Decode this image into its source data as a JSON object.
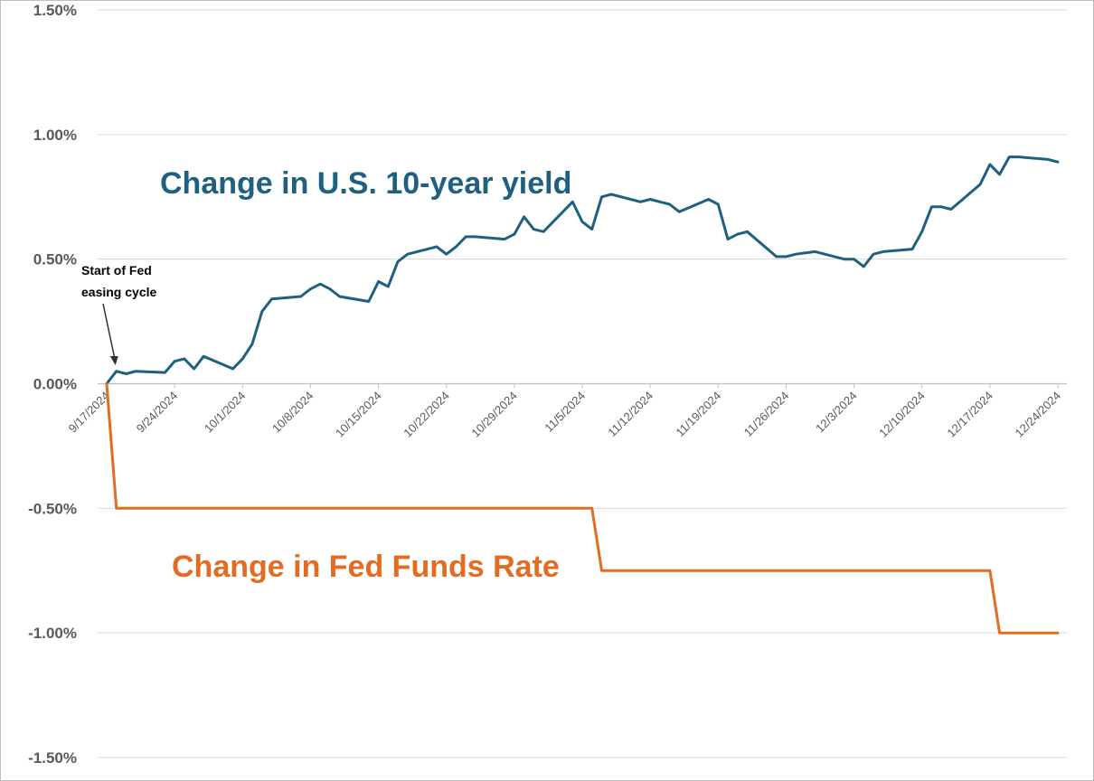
{
  "chart_data": {
    "type": "line",
    "x_type": "date",
    "y_ticks": [
      "1.50%",
      "1.00%",
      "0.50%",
      "0.00%",
      "-0.50%",
      "-1.00%",
      "-1.50%"
    ],
    "y_tick_values": [
      1.5,
      1.0,
      0.5,
      0.0,
      -0.5,
      -1.0,
      -1.5
    ],
    "ylim": [
      -1.5,
      1.5
    ],
    "grid": true,
    "x_tick_labels": [
      "9/17/2024",
      "9/24/2024",
      "10/1/2024",
      "10/8/2024",
      "10/15/2024",
      "10/22/2024",
      "10/29/2024",
      "11/5/2024",
      "11/12/2024",
      "11/19/2024",
      "11/26/2024",
      "12/3/2024",
      "12/10/2024",
      "12/17/2024",
      "12/24/2024"
    ],
    "x_tick_dates": [
      "2024-09-17",
      "2024-09-24",
      "2024-10-01",
      "2024-10-08",
      "2024-10-15",
      "2024-10-22",
      "2024-10-29",
      "2024-11-05",
      "2024-11-12",
      "2024-11-19",
      "2024-11-26",
      "2024-12-03",
      "2024-12-10",
      "2024-12-17",
      "2024-12-24"
    ],
    "xlim": [
      "2024-09-17",
      "2024-12-24"
    ],
    "annotation": {
      "lines": [
        "Start of Fed",
        "easing cycle"
      ],
      "date": "2024-09-18"
    },
    "series": [
      {
        "name": "Change in U.S. 10-year yield",
        "label_lines": [
          "Change in U.S. 10-year yield"
        ],
        "color": "#1f6080",
        "step": false,
        "x": [
          "2024-09-17",
          "2024-09-18",
          "2024-09-19",
          "2024-09-20",
          "2024-09-23",
          "2024-09-24",
          "2024-09-25",
          "2024-09-26",
          "2024-09-27",
          "2024-09-30",
          "2024-10-01",
          "2024-10-02",
          "2024-10-03",
          "2024-10-04",
          "2024-10-07",
          "2024-10-08",
          "2024-10-09",
          "2024-10-10",
          "2024-10-11",
          "2024-10-14",
          "2024-10-15",
          "2024-10-16",
          "2024-10-17",
          "2024-10-18",
          "2024-10-21",
          "2024-10-22",
          "2024-10-23",
          "2024-10-24",
          "2024-10-25",
          "2024-10-28",
          "2024-10-29",
          "2024-10-30",
          "2024-10-31",
          "2024-11-01",
          "2024-11-04",
          "2024-11-05",
          "2024-11-06",
          "2024-11-07",
          "2024-11-08",
          "2024-11-11",
          "2024-11-12",
          "2024-11-13",
          "2024-11-14",
          "2024-11-15",
          "2024-11-18",
          "2024-11-19",
          "2024-11-20",
          "2024-11-21",
          "2024-11-22",
          "2024-11-25",
          "2024-11-26",
          "2024-11-27",
          "2024-11-29",
          "2024-12-02",
          "2024-12-03",
          "2024-12-04",
          "2024-12-05",
          "2024-12-06",
          "2024-12-09",
          "2024-12-10",
          "2024-12-11",
          "2024-12-12",
          "2024-12-13",
          "2024-12-16",
          "2024-12-17",
          "2024-12-18",
          "2024-12-19",
          "2024-12-20",
          "2024-12-23",
          "2024-12-24"
        ],
        "y": [
          0.0,
          0.05,
          0.04,
          0.05,
          0.045,
          0.09,
          0.1,
          0.06,
          0.11,
          0.06,
          0.1,
          0.16,
          0.29,
          0.34,
          0.35,
          0.38,
          0.4,
          0.38,
          0.35,
          0.33,
          0.41,
          0.39,
          0.49,
          0.52,
          0.55,
          0.52,
          0.55,
          0.59,
          0.59,
          0.58,
          0.6,
          0.67,
          0.62,
          0.61,
          0.73,
          0.65,
          0.62,
          0.75,
          0.76,
          0.73,
          0.74,
          0.73,
          0.72,
          0.69,
          0.74,
          0.72,
          0.58,
          0.6,
          0.61,
          0.51,
          0.51,
          0.52,
          0.53,
          0.5,
          0.5,
          0.47,
          0.52,
          0.53,
          0.54,
          0.61,
          0.71,
          0.71,
          0.7,
          0.8,
          0.88,
          0.84,
          0.91,
          0.91,
          0.9,
          0.89
        ]
      },
      {
        "name": "Change in Fed Funds Rate",
        "label_lines": [
          "Change in Fed Funds Rate"
        ],
        "color": "#e36c22",
        "step": true,
        "x": [
          "2024-09-17",
          "2024-09-18",
          "2024-11-07",
          "2024-12-18",
          "2024-12-24"
        ],
        "y": [
          0.0,
          -0.5,
          -0.75,
          -1.0,
          -1.0
        ]
      }
    ]
  }
}
